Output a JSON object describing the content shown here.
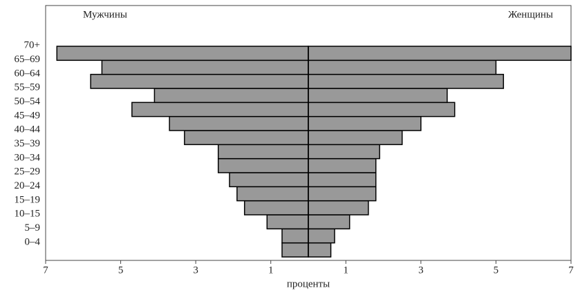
{
  "chart_data": {
    "type": "pyramid",
    "xlabel": "проценты",
    "categories": [
      "0–4",
      "5–9",
      "10–15",
      "15–19",
      "20–24",
      "25–29",
      "30–34",
      "35–39",
      "40–44",
      "45–49",
      "50–54",
      "55–59",
      "60–64",
      "65–69",
      "70+"
    ],
    "series": [
      {
        "name": "Мужчины",
        "side": "left",
        "color": "#999999",
        "values": [
          0.7,
          0.7,
          1.1,
          1.7,
          1.9,
          2.1,
          2.4,
          2.4,
          3.3,
          3.7,
          4.7,
          4.1,
          5.8,
          5.5,
          6.7
        ]
      },
      {
        "name": "Женщины",
        "side": "right",
        "color": "#999999",
        "values": [
          0.6,
          0.7,
          1.1,
          1.6,
          1.8,
          1.8,
          1.8,
          1.9,
          2.5,
          3.0,
          3.9,
          3.7,
          5.2,
          5.0,
          7.0
        ]
      }
    ],
    "xlim": [
      -7,
      7
    ],
    "xticks": [
      {
        "value": -7,
        "label": "7"
      },
      {
        "value": -5,
        "label": "5"
      },
      {
        "value": -3,
        "label": "3"
      },
      {
        "value": -1,
        "label": "1"
      },
      1,
      3,
      5,
      7
    ]
  }
}
